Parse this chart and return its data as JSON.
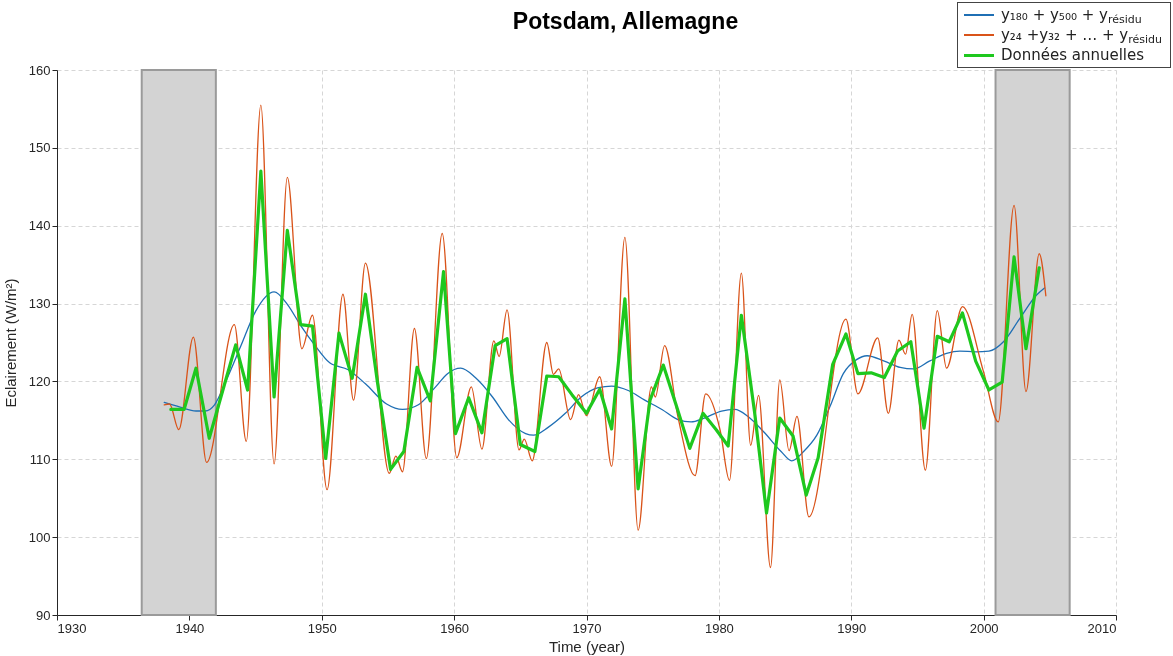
{
  "chart_data": {
    "type": "line",
    "title": "Potsdam, Allemagne",
    "xlabel": "Time (year)",
    "ylabel": "Eclairement (W/m²)",
    "xlim": [
      1930,
      2010
    ],
    "xticks": [
      1930,
      1940,
      1950,
      1960,
      1970,
      1980,
      1990,
      2000,
      2010
    ],
    "ylim": [
      90,
      160
    ],
    "yticks": [
      90,
      100,
      110,
      120,
      130,
      140,
      150,
      160
    ],
    "grid": true,
    "legend": "top right",
    "bands": [
      {
        "axis": "x",
        "from": 1936.4,
        "to": 1942.0,
        "color": "#d3d3d3"
      },
      {
        "axis": "x",
        "from": 2000.9,
        "to": 2006.5,
        "color": "#d3d3d3"
      }
    ],
    "series": [
      {
        "name": "y₁₈₀ + y₅₀₀ + y$_{résidu}$",
        "color": "#1f6fb4",
        "x": [
          1938.1,
          1939.3,
          1940.5,
          1941.2,
          1941.9,
          1942.8,
          1943.9,
          1945.0,
          1946.4,
          1947.4,
          1948.4,
          1949.5,
          1950.6,
          1952.0,
          1953.3,
          1954.9,
          1956.1,
          1957.3,
          1958.6,
          1959.5,
          1960.5,
          1961.6,
          1962.9,
          1964.1,
          1965.4,
          1966.0,
          1967.1,
          1968.4,
          1969.6,
          1970.9,
          1971.9,
          1973.2,
          1974.4,
          1975.7,
          1976.9,
          1977.9,
          1978.9,
          1980.2,
          1981.2,
          1982.2,
          1983.4,
          1984.7,
          1985.5,
          1986.4,
          1987.4,
          1988.4,
          1989.4,
          1990.4,
          1991.2,
          1992.5,
          1993.7,
          1994.7,
          1995.9,
          1997.2,
          1998.2,
          1999.4,
          2000.4,
          2001.5,
          2002.7,
          2004.0,
          2004.6
        ],
        "values": [
          117.3,
          116.7,
          116.2,
          116.2,
          117.0,
          120.2,
          124.6,
          129.0,
          131.5,
          129.9,
          127.2,
          124.6,
          122.4,
          121.5,
          119.7,
          117.1,
          116.4,
          117.0,
          119.3,
          121.0,
          121.7,
          120.5,
          118.0,
          115.1,
          113.3,
          113.1,
          114.1,
          115.9,
          118.0,
          119.2,
          119.4,
          118.8,
          117.6,
          116.4,
          115.1,
          114.8,
          115.3,
          116.2,
          116.4,
          115.5,
          113.5,
          111.0,
          109.8,
          111.0,
          113.1,
          116.8,
          121.0,
          122.8,
          123.3,
          122.6,
          121.8,
          121.6,
          122.6,
          123.6,
          123.9,
          123.8,
          123.9,
          125.1,
          128.0,
          131.1,
          132.0
        ]
      },
      {
        "name": "y₂₄ +y₃₂ + … + y$_{résidu}$",
        "color": "#d95319",
        "x": [
          1938.1,
          1938.5,
          1939.2,
          1940.3,
          1941.3,
          1943.4,
          1944.3,
          1945.4,
          1946.4,
          1947.4,
          1948.5,
          1949.3,
          1950.4,
          1951.6,
          1952.4,
          1953.3,
          1955.1,
          1955.6,
          1956.1,
          1957.0,
          1957.9,
          1959.1,
          1960.2,
          1961.3,
          1962.1,
          1963.0,
          1963.4,
          1964.0,
          1964.9,
          1965.3,
          1965.9,
          1967.0,
          1967.5,
          1967.9,
          1968.8,
          1969.4,
          1970.0,
          1971.0,
          1971.9,
          1972.9,
          1973.9,
          1974.9,
          1975.2,
          1975.9,
          1976.9,
          1978.2,
          1979.0,
          1980.1,
          1980.8,
          1981.7,
          1982.4,
          1983.0,
          1983.9,
          1984.6,
          1985.3,
          1985.9,
          1986.8,
          1989.6,
          1990.5,
          1992.0,
          1992.8,
          1993.6,
          1994.1,
          1994.6,
          1995.6,
          1996.5,
          1997.2,
          1998.4,
          2000.0,
          2001.1,
          2002.3,
          2003.2,
          2004.2,
          2004.7
        ],
        "values": [
          117.0,
          117.1,
          113.8,
          125.7,
          109.6,
          127.3,
          112.3,
          155.5,
          109.4,
          146.2,
          124.2,
          128.5,
          106.1,
          131.2,
          117.6,
          135.2,
          108.2,
          110.4,
          108.4,
          126.8,
          110.1,
          139.0,
          110.2,
          119.3,
          111.3,
          125.2,
          123.2,
          129.2,
          111.2,
          112.6,
          109.8,
          125.0,
          120.9,
          121.6,
          115.1,
          118.3,
          115.6,
          120.6,
          109.1,
          138.5,
          100.9,
          119.3,
          118.0,
          124.6,
          115.5,
          107.9,
          118.4,
          113.7,
          107.3,
          133.9,
          111.8,
          118.2,
          96.1,
          120.2,
          111.1,
          115.5,
          102.6,
          128.0,
          118.4,
          125.6,
          115.9,
          125.3,
          123.5,
          128.6,
          108.6,
          129.1,
          121.7,
          129.6,
          121.2,
          114.8,
          142.6,
          118.7,
          136.4,
          131.0
        ]
      },
      {
        "name": "Données annuelles",
        "color": "#1ec81e",
        "x": [
          1938.6,
          1939.6,
          1940.5,
          1941.5,
          1942.5,
          1943.5,
          1944.4,
          1945.4,
          1946.4,
          1947.4,
          1948.4,
          1949.3,
          1950.3,
          1951.3,
          1952.3,
          1953.3,
          1954.2,
          1955.2,
          1956.2,
          1957.2,
          1958.2,
          1959.2,
          1960.1,
          1961.1,
          1962.1,
          1963.1,
          1964.0,
          1965.0,
          1966.1,
          1967.0,
          1967.9,
          1968.9,
          1970.0,
          1971.0,
          1971.9,
          1972.9,
          1973.9,
          1974.8,
          1975.8,
          1976.8,
          1977.8,
          1978.8,
          1979.8,
          1980.7,
          1981.7,
          1982.7,
          1983.6,
          1984.6,
          1985.6,
          1986.6,
          1987.5,
          1988.6,
          1989.6,
          1990.5,
          1991.5,
          1992.5,
          1993.5,
          1994.5,
          1995.5,
          1996.5,
          1997.4,
          1998.4,
          1999.4,
          2000.4,
          2001.4,
          2002.3,
          2003.2,
          2004.2
        ],
        "values": [
          116.4,
          116.4,
          121.7,
          112.7,
          118.7,
          124.7,
          118.9,
          147.0,
          118.0,
          139.4,
          127.3,
          127.1,
          110.1,
          126.2,
          120.4,
          131.2,
          120.0,
          108.7,
          111.0,
          121.8,
          117.5,
          134.1,
          113.3,
          117.9,
          113.4,
          124.6,
          125.5,
          111.9,
          111.0,
          120.7,
          120.6,
          118.3,
          115.9,
          119.0,
          113.9,
          130.6,
          106.2,
          117.6,
          122.1,
          116.8,
          111.4,
          115.9,
          113.8,
          111.7,
          128.5,
          116.0,
          103.1,
          115.3,
          113.0,
          105.4,
          110.2,
          122.2,
          126.1,
          121.0,
          121.1,
          120.5,
          123.9,
          125.1,
          114.0,
          125.8,
          125.1,
          128.8,
          122.6,
          118.9,
          119.9,
          136.0,
          124.2,
          134.6
        ]
      }
    ]
  }
}
